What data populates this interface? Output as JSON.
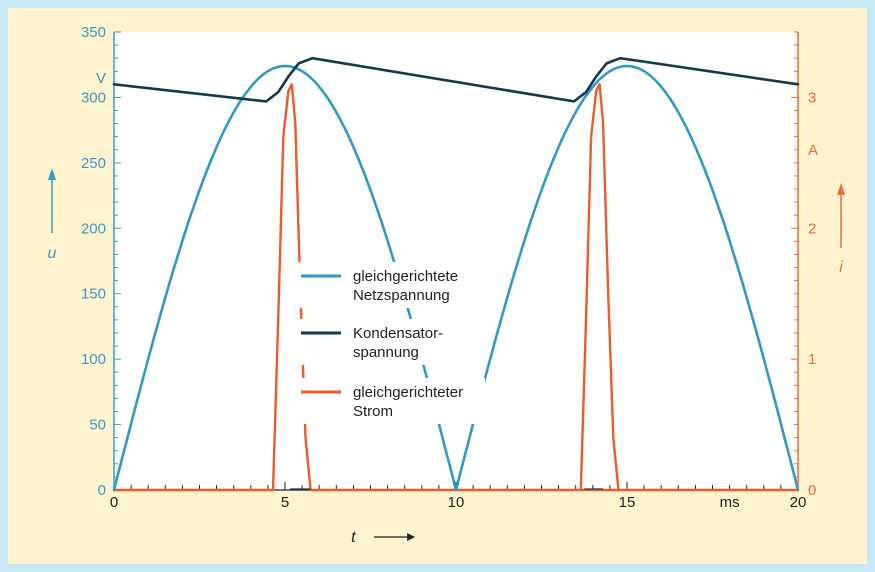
{
  "chart_data": {
    "type": "line",
    "x": {
      "label": "t",
      "unit": "ms",
      "ticks": [
        0,
        5,
        10,
        15,
        20
      ],
      "range": [
        0,
        20
      ]
    },
    "y_left": {
      "label": "u",
      "unit": "V",
      "ticks": [
        0,
        50,
        100,
        150,
        200,
        250,
        300,
        350
      ],
      "range": [
        0,
        350
      ],
      "color": "#3a9cc4"
    },
    "y_right": {
      "label": "i",
      "unit": "A",
      "ticks": [
        0,
        1,
        2,
        3
      ],
      "range": [
        0,
        3.5
      ],
      "color": "#f06a3a"
    },
    "series": [
      {
        "name": "gleichgerichtete Netzspannung",
        "axis": "left",
        "color": "#2f9ac8",
        "x": [
          0,
          1,
          2,
          3,
          4,
          5,
          5.5,
          6,
          7,
          8,
          9,
          10,
          11,
          12,
          13,
          14,
          15,
          15.5,
          16,
          17,
          18,
          19,
          20
        ],
        "y": [
          0,
          97,
          184,
          253,
          297,
          319,
          324,
          323,
          297,
          253,
          184,
          0,
          97,
          184,
          253,
          297,
          319,
          324,
          323,
          297,
          253,
          184,
          0
        ]
      },
      {
        "name": "Kondensatorspannung",
        "axis": "left",
        "color": "#123a4e",
        "x": [
          0,
          4.45,
          4.8,
          5.1,
          5.4,
          5.8,
          13.45,
          13.8,
          14.1,
          14.4,
          14.8,
          20
        ],
        "y": [
          310,
          297,
          304,
          316,
          326,
          330,
          297,
          304,
          316,
          326,
          330,
          310
        ]
      },
      {
        "name": "gleichgerichteter Strom",
        "axis": "right",
        "color": "#f05a28",
        "x": [
          0,
          4.65,
          4.8,
          4.95,
          5.1,
          5.2,
          5.3,
          5.45,
          5.6,
          5.75,
          20
        ],
        "y": [
          0,
          0,
          1.3,
          2.7,
          3.05,
          3.1,
          2.8,
          1.5,
          0.4,
          0,
          0
        ],
        "x2": [
          13.65,
          13.8,
          13.95,
          14.1,
          14.2,
          14.3,
          14.45,
          14.6,
          14.75
        ],
        "y2": [
          0,
          1.3,
          2.7,
          3.05,
          3.1,
          2.8,
          1.5,
          0.4,
          0
        ]
      }
    ],
    "legend": [
      {
        "line1": "gleichgerichtete",
        "line2": "Netzspannung",
        "color": "#2f9ac8"
      },
      {
        "line1": "Kondensator-",
        "line2": "spannung",
        "color": "#123a4e"
      },
      {
        "line1": "gleichgerichteter",
        "line2": "Strom",
        "color": "#f05a28"
      }
    ]
  }
}
